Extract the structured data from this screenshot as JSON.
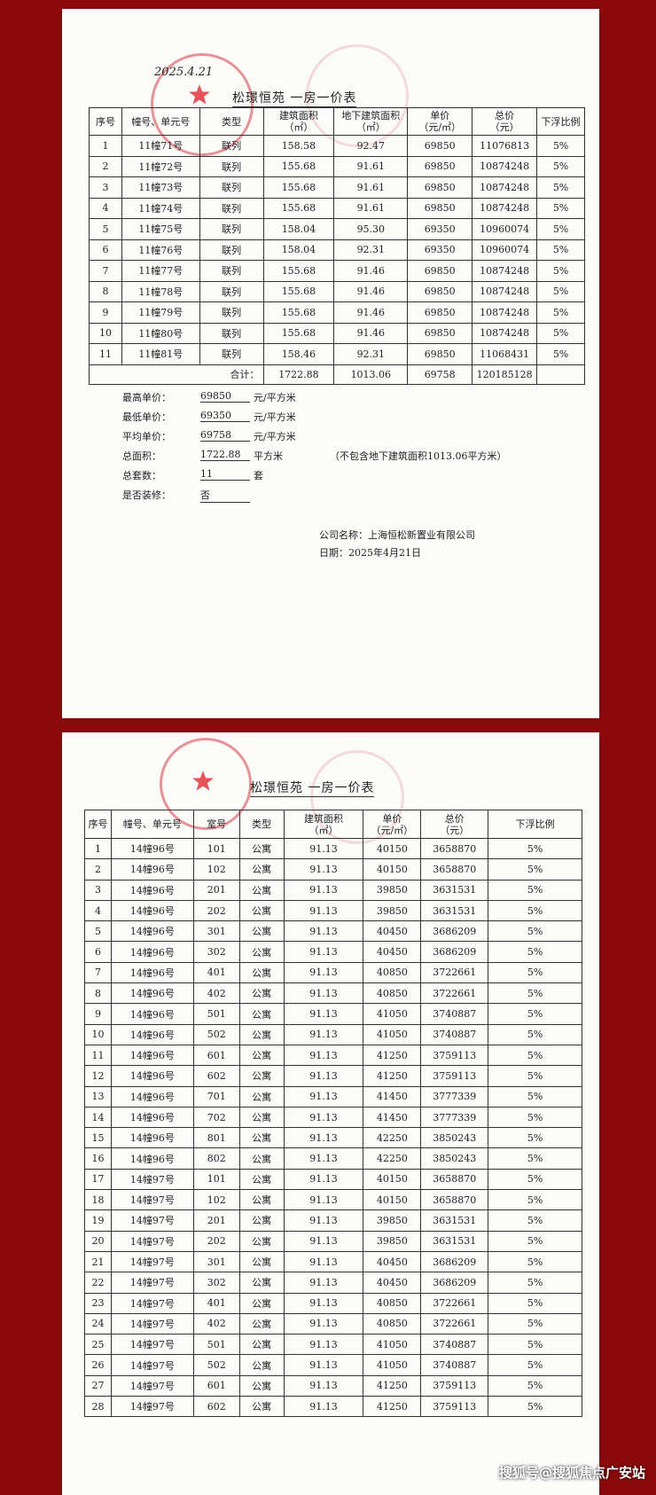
{
  "doc1": {
    "handwriting": "2025.4.21",
    "title": "松璟恒苑  一房一价表",
    "headers": [
      "序号",
      "幢号、单元号",
      "类型",
      "建筑面积\n（㎡）",
      "地下建筑面积\n（㎡）",
      "单价\n（元/㎡）",
      "总价\n（元）",
      "下浮比例"
    ],
    "rows": [
      [
        "1",
        "11幢71号",
        "联列",
        "158.58",
        "92.47",
        "69850",
        "11076813",
        "5%"
      ],
      [
        "2",
        "11幢72号",
        "联列",
        "155.68",
        "91.61",
        "69850",
        "10874248",
        "5%"
      ],
      [
        "3",
        "11幢73号",
        "联列",
        "155.68",
        "91.61",
        "69850",
        "10874248",
        "5%"
      ],
      [
        "4",
        "11幢74号",
        "联列",
        "155.68",
        "91.61",
        "69850",
        "10874248",
        "5%"
      ],
      [
        "5",
        "11幢75号",
        "联列",
        "158.04",
        "95.30",
        "69350",
        "10960074",
        "5%"
      ],
      [
        "6",
        "11幢76号",
        "联列",
        "158.04",
        "92.31",
        "69350",
        "10960074",
        "5%"
      ],
      [
        "7",
        "11幢77号",
        "联列",
        "155.68",
        "91.46",
        "69850",
        "10874248",
        "5%"
      ],
      [
        "8",
        "11幢78号",
        "联列",
        "155.68",
        "91.46",
        "69850",
        "10874248",
        "5%"
      ],
      [
        "9",
        "11幢79号",
        "联列",
        "155.68",
        "91.46",
        "69850",
        "10874248",
        "5%"
      ],
      [
        "10",
        "11幢80号",
        "联列",
        "155.68",
        "91.46",
        "69850",
        "10874248",
        "5%"
      ],
      [
        "11",
        "11幢81号",
        "联列",
        "158.46",
        "92.31",
        "69850",
        "11068431",
        "5%"
      ]
    ],
    "total": {
      "label": "合计：",
      "area": "1722.88",
      "underground": "1013.06",
      "unit_price": "69758",
      "total_price": "120185128"
    },
    "summary": [
      {
        "label": "最高单价：",
        "value": "69850",
        "unit": "元/平方米"
      },
      {
        "label": "最低单价：",
        "value": "69350",
        "unit": "元/平方米"
      },
      {
        "label": "平均单价：",
        "value": "69758",
        "unit": "元/平方米"
      },
      {
        "label": "总面积：",
        "value": "1722.88",
        "unit": "平方米"
      },
      {
        "label": "总套数：",
        "value": "11",
        "unit": "套"
      },
      {
        "label": "是否装修：",
        "value": "否",
        "unit": ""
      }
    ],
    "note": "（不包含地下建筑面积1013.06平方米）",
    "company": "公司名称：上海恒松新置业有限公司",
    "date": "日期：2025年4月21日"
  },
  "doc2": {
    "title": "松璟恒苑  一房一价表",
    "headers": [
      "序号",
      "幢号、单元号",
      "室号",
      "类型",
      "建筑面积\n（㎡）",
      "单价\n（元/㎡）",
      "总价\n（元）",
      "下浮比例"
    ],
    "rows": [
      [
        "1",
        "14幢96号",
        "101",
        "公寓",
        "91.13",
        "40150",
        "3658870",
        "5%"
      ],
      [
        "2",
        "14幢96号",
        "102",
        "公寓",
        "91.13",
        "40150",
        "3658870",
        "5%"
      ],
      [
        "3",
        "14幢96号",
        "201",
        "公寓",
        "91.13",
        "39850",
        "3631531",
        "5%"
      ],
      [
        "4",
        "14幢96号",
        "202",
        "公寓",
        "91.13",
        "39850",
        "3631531",
        "5%"
      ],
      [
        "5",
        "14幢96号",
        "301",
        "公寓",
        "91.13",
        "40450",
        "3686209",
        "5%"
      ],
      [
        "6",
        "14幢96号",
        "302",
        "公寓",
        "91.13",
        "40450",
        "3686209",
        "5%"
      ],
      [
        "7",
        "14幢96号",
        "401",
        "公寓",
        "91.13",
        "40850",
        "3722661",
        "5%"
      ],
      [
        "8",
        "14幢96号",
        "402",
        "公寓",
        "91.13",
        "40850",
        "3722661",
        "5%"
      ],
      [
        "9",
        "14幢96号",
        "501",
        "公寓",
        "91.13",
        "41050",
        "3740887",
        "5%"
      ],
      [
        "10",
        "14幢96号",
        "502",
        "公寓",
        "91.13",
        "41050",
        "3740887",
        "5%"
      ],
      [
        "11",
        "14幢96号",
        "601",
        "公寓",
        "91.13",
        "41250",
        "3759113",
        "5%"
      ],
      [
        "12",
        "14幢96号",
        "602",
        "公寓",
        "91.13",
        "41250",
        "3759113",
        "5%"
      ],
      [
        "13",
        "14幢96号",
        "701",
        "公寓",
        "91.13",
        "41450",
        "3777339",
        "5%"
      ],
      [
        "14",
        "14幢96号",
        "702",
        "公寓",
        "91.13",
        "41450",
        "3777339",
        "5%"
      ],
      [
        "15",
        "14幢96号",
        "801",
        "公寓",
        "91.13",
        "42250",
        "3850243",
        "5%"
      ],
      [
        "16",
        "14幢96号",
        "802",
        "公寓",
        "91.13",
        "42250",
        "3850243",
        "5%"
      ],
      [
        "17",
        "14幢97号",
        "101",
        "公寓",
        "91.13",
        "40150",
        "3658870",
        "5%"
      ],
      [
        "18",
        "14幢97号",
        "102",
        "公寓",
        "91.13",
        "40150",
        "3658870",
        "5%"
      ],
      [
        "19",
        "14幢97号",
        "201",
        "公寓",
        "91.13",
        "39850",
        "3631531",
        "5%"
      ],
      [
        "20",
        "14幢97号",
        "202",
        "公寓",
        "91.13",
        "39850",
        "3631531",
        "5%"
      ],
      [
        "21",
        "14幢97号",
        "301",
        "公寓",
        "91.13",
        "40450",
        "3686209",
        "5%"
      ],
      [
        "22",
        "14幢97号",
        "302",
        "公寓",
        "91.13",
        "40450",
        "3686209",
        "5%"
      ],
      [
        "23",
        "14幢97号",
        "401",
        "公寓",
        "91.13",
        "40850",
        "3722661",
        "5%"
      ],
      [
        "24",
        "14幢97号",
        "402",
        "公寓",
        "91.13",
        "40850",
        "3722661",
        "5%"
      ],
      [
        "25",
        "14幢97号",
        "501",
        "公寓",
        "91.13",
        "41050",
        "3740887",
        "5%"
      ],
      [
        "26",
        "14幢97号",
        "502",
        "公寓",
        "91.13",
        "41050",
        "3740887",
        "5%"
      ],
      [
        "27",
        "14幢97号",
        "601",
        "公寓",
        "91.13",
        "41250",
        "3759113",
        "5%"
      ],
      [
        "28",
        "14幢97号",
        "602",
        "公寓",
        "91.13",
        "41250",
        "3759113",
        "5%"
      ]
    ]
  },
  "watermark": "搜狐号@搜狐焦点广安站",
  "colors": {
    "background": "#8a0a0c",
    "stamp": "#d73c46"
  }
}
